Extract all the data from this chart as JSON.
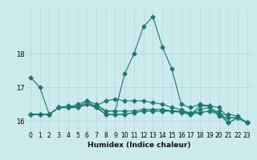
{
  "title": "",
  "xlabel": "Humidex (Indice chaleur)",
  "ylabel": "",
  "bg_color": "#cce9eb",
  "grid_color": "#aed4d6",
  "line_color": "#1a7a6e",
  "x": [
    0,
    1,
    2,
    3,
    4,
    5,
    6,
    7,
    8,
    9,
    10,
    11,
    12,
    13,
    14,
    15,
    16,
    17,
    18,
    19,
    20,
    21,
    22,
    23
  ],
  "series": [
    [
      17.3,
      17.0,
      16.2,
      16.4,
      16.4,
      16.5,
      16.6,
      16.5,
      16.3,
      16.3,
      17.4,
      18.0,
      18.8,
      19.1,
      18.2,
      17.55,
      16.5,
      16.4,
      16.5,
      16.45,
      16.4,
      16.1,
      16.1,
      15.95
    ],
    [
      16.2,
      16.2,
      16.2,
      16.4,
      16.4,
      16.4,
      16.6,
      16.4,
      16.2,
      16.2,
      16.2,
      16.25,
      16.3,
      16.3,
      16.3,
      16.3,
      16.3,
      16.25,
      16.25,
      16.3,
      16.3,
      15.95,
      16.1,
      15.95
    ],
    [
      16.2,
      16.2,
      16.2,
      16.4,
      16.45,
      16.4,
      16.5,
      16.45,
      16.6,
      16.65,
      16.6,
      16.6,
      16.6,
      16.55,
      16.5,
      16.4,
      16.35,
      16.2,
      16.45,
      16.45,
      16.2,
      16.2,
      16.15,
      15.95
    ],
    [
      16.2,
      16.2,
      16.2,
      16.4,
      16.4,
      16.45,
      16.5,
      16.4,
      16.3,
      16.3,
      16.3,
      16.3,
      16.35,
      16.35,
      16.35,
      16.3,
      16.25,
      16.2,
      16.35,
      16.4,
      16.15,
      16.1,
      16.1,
      15.95
    ],
    [
      16.2,
      16.2,
      16.2,
      16.4,
      16.4,
      16.4,
      16.5,
      16.4,
      16.2,
      16.2,
      16.2,
      16.25,
      16.3,
      16.3,
      16.3,
      16.3,
      16.3,
      16.2,
      16.25,
      16.3,
      16.2,
      15.95,
      16.1,
      15.95
    ]
  ],
  "ylim": [
    15.7,
    19.4
  ],
  "yticks": [
    16,
    17,
    18
  ],
  "xticks": [
    0,
    1,
    2,
    3,
    4,
    5,
    6,
    7,
    8,
    9,
    10,
    11,
    12,
    13,
    14,
    15,
    16,
    17,
    18,
    19,
    20,
    21,
    22,
    23
  ],
  "markersize": 2.5,
  "linewidth": 0.8,
  "xlabel_fontsize": 6.5,
  "tick_fontsize": 5.5
}
